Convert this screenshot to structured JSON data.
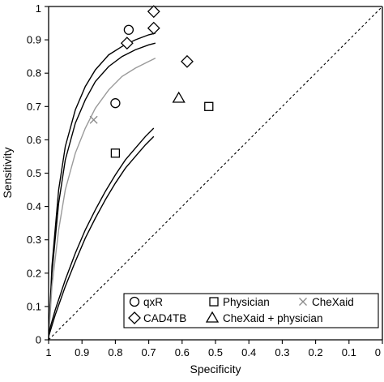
{
  "chart_data": {
    "type": "scatter",
    "title": "",
    "xlabel": "Specificity",
    "ylabel": "Sensitivity",
    "xlim": [
      1,
      0
    ],
    "ylim": [
      0,
      1
    ],
    "x_reversed": true,
    "grid": false,
    "diagonal_reference_line": true,
    "x_ticks": [
      "1",
      "0.9",
      "0.8",
      "0.7",
      "0.6",
      "0.5",
      "0.4",
      "0.3",
      "0.2",
      "0.1",
      "0"
    ],
    "y_ticks": [
      "0",
      "0.1",
      "0.2",
      "0.3",
      "0.4",
      "0.5",
      "0.6",
      "0.7",
      "0.8",
      "0.9",
      "1"
    ],
    "legend_placement": "bottom-right",
    "series": [
      {
        "name": "qxR",
        "marker": "circle",
        "points": [
          [
            0.76,
            0.93
          ],
          [
            0.8,
            0.71
          ]
        ]
      },
      {
        "name": "Physician",
        "marker": "square",
        "points": [
          [
            0.8,
            0.56
          ],
          [
            0.52,
            0.7
          ]
        ]
      },
      {
        "name": "CheXaid",
        "marker": "x",
        "points": [
          [
            0.865,
            0.66
          ]
        ]
      },
      {
        "name": "CAD4TB",
        "marker": "diamond",
        "points": [
          [
            0.685,
            0.985
          ],
          [
            0.685,
            0.935
          ],
          [
            0.765,
            0.89
          ],
          [
            0.585,
            0.835
          ]
        ]
      },
      {
        "name": "CheXaid + physician",
        "marker": "triangle",
        "points": [
          [
            0.61,
            0.725
          ]
        ]
      }
    ],
    "curves": [
      {
        "color": "#000000",
        "points": [
          [
            1.0,
            0.0
          ],
          [
            0.99,
            0.22
          ],
          [
            0.97,
            0.45
          ],
          [
            0.95,
            0.58
          ],
          [
            0.92,
            0.69
          ],
          [
            0.89,
            0.76
          ],
          [
            0.86,
            0.81
          ],
          [
            0.82,
            0.855
          ],
          [
            0.78,
            0.88
          ],
          [
            0.74,
            0.9
          ],
          [
            0.7,
            0.915
          ],
          [
            0.68,
            0.92
          ]
        ]
      },
      {
        "color": "#000000",
        "points": [
          [
            1.0,
            0.0
          ],
          [
            0.99,
            0.2
          ],
          [
            0.97,
            0.41
          ],
          [
            0.95,
            0.54
          ],
          [
            0.92,
            0.65
          ],
          [
            0.89,
            0.72
          ],
          [
            0.86,
            0.775
          ],
          [
            0.82,
            0.82
          ],
          [
            0.78,
            0.85
          ],
          [
            0.74,
            0.87
          ],
          [
            0.7,
            0.885
          ],
          [
            0.68,
            0.89
          ]
        ]
      },
      {
        "color": "#9a9a9a",
        "points": [
          [
            1.0,
            0.0
          ],
          [
            0.99,
            0.16
          ],
          [
            0.97,
            0.33
          ],
          [
            0.95,
            0.45
          ],
          [
            0.92,
            0.56
          ],
          [
            0.89,
            0.635
          ],
          [
            0.86,
            0.695
          ],
          [
            0.82,
            0.75
          ],
          [
            0.78,
            0.79
          ],
          [
            0.74,
            0.815
          ],
          [
            0.7,
            0.835
          ],
          [
            0.68,
            0.845
          ]
        ]
      },
      {
        "color": "#000000",
        "points": [
          [
            1.0,
            0.02
          ],
          [
            0.98,
            0.09
          ],
          [
            0.95,
            0.18
          ],
          [
            0.92,
            0.26
          ],
          [
            0.89,
            0.33
          ],
          [
            0.86,
            0.39
          ],
          [
            0.83,
            0.445
          ],
          [
            0.8,
            0.495
          ],
          [
            0.77,
            0.54
          ],
          [
            0.74,
            0.575
          ],
          [
            0.71,
            0.61
          ],
          [
            0.685,
            0.635
          ]
        ]
      },
      {
        "color": "#000000",
        "points": [
          [
            1.0,
            0.01
          ],
          [
            0.98,
            0.075
          ],
          [
            0.95,
            0.16
          ],
          [
            0.92,
            0.235
          ],
          [
            0.89,
            0.305
          ],
          [
            0.86,
            0.365
          ],
          [
            0.83,
            0.42
          ],
          [
            0.8,
            0.47
          ],
          [
            0.77,
            0.515
          ],
          [
            0.74,
            0.55
          ],
          [
            0.71,
            0.585
          ],
          [
            0.685,
            0.61
          ]
        ]
      }
    ]
  }
}
